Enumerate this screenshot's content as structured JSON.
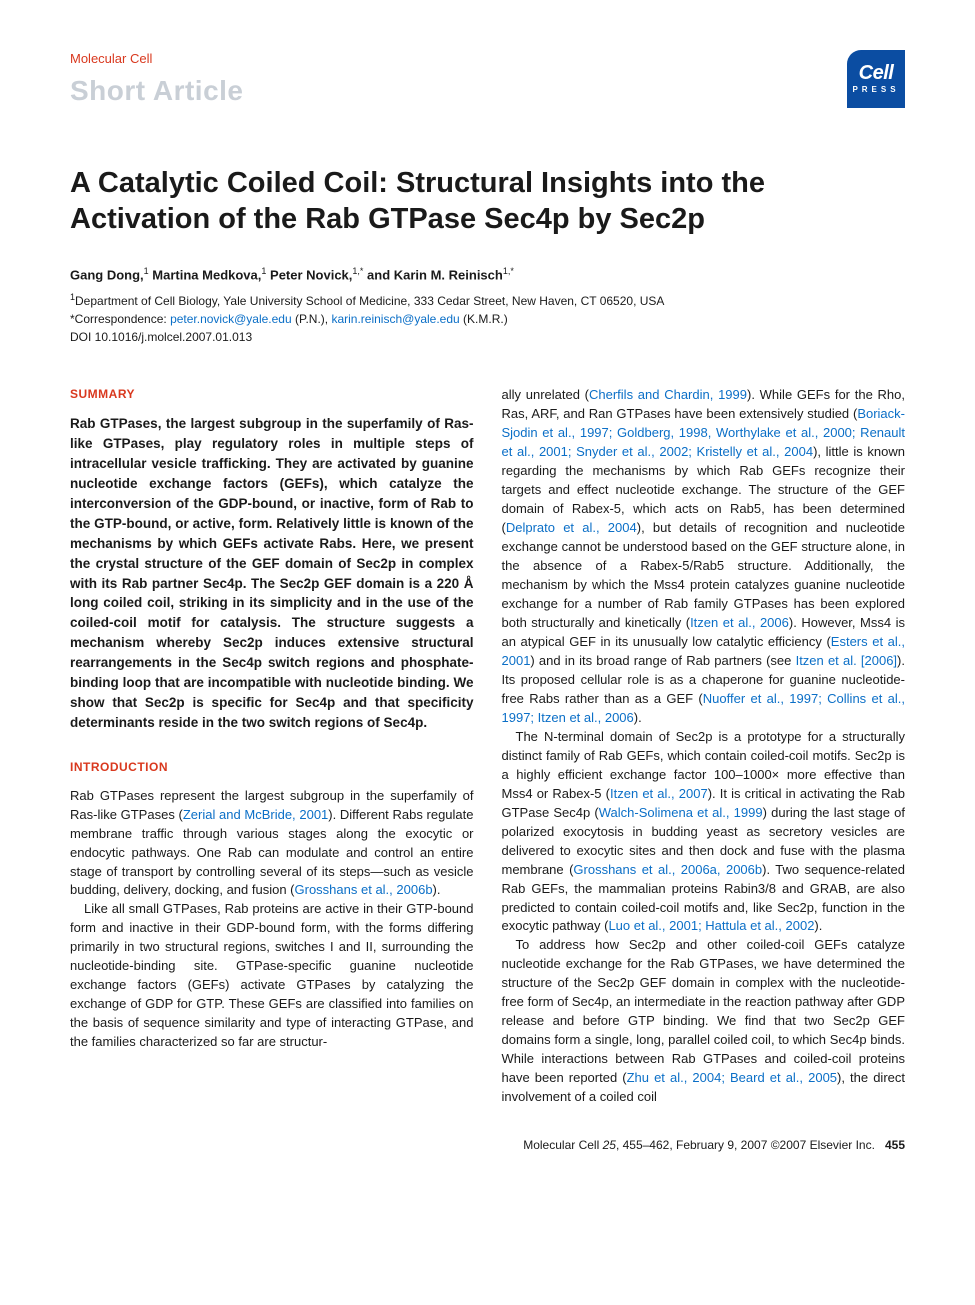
{
  "colors": {
    "accent_red": "#d9381e",
    "faded_gray": "#c9cfd6",
    "link_blue": "#0b6fc7",
    "logo_blue": "#0b4da2",
    "text": "#1a1a1a",
    "background": "#ffffff"
  },
  "typography": {
    "body_pt": 13,
    "title_pt": 29,
    "article_type_pt": 28,
    "section_head_pt": 12,
    "footer_pt": 12
  },
  "header": {
    "journal": "Molecular Cell",
    "article_type": "Short Article",
    "logo_top": "Cell",
    "logo_bottom": "PRESS"
  },
  "title": "A Catalytic Coiled Coil: Structural Insights into the Activation of the Rab GTPase Sec4p by Sec2p",
  "authors_html": "Gang Dong,<sup>1</sup> Martina Medkova,<sup>1</sup> Peter Novick,<sup>1,*</sup> and Karin M. Reinisch<sup>1,*</sup>",
  "affiliation_html": "<sup>1</sup>Department of Cell Biology, Yale University School of Medicine, 333 Cedar Street, New Haven, CT 06520, USA",
  "correspondence_prefix": "*Correspondence: ",
  "correspondence_email1": "peter.novick@yale.edu",
  "correspondence_mid1": " (P.N.), ",
  "correspondence_email2": "karin.reinisch@yale.edu",
  "correspondence_mid2": " (K.M.R.)",
  "doi": "DOI 10.1016/j.molcel.2007.01.013",
  "sections": {
    "summary_head": "SUMMARY",
    "summary_body": "Rab GTPases, the largest subgroup in the superfamily of Ras-like GTPases, play regulatory roles in multiple steps of intracellular vesicle trafficking. They are activated by guanine nucleotide exchange factors (GEFs), which catalyze the interconversion of the GDP-bound, or inactive, form of Rab to the GTP-bound, or active, form. Relatively little is known of the mechanisms by which GEFs activate Rabs. Here, we present the crystal structure of the GEF domain of Sec2p in complex with its Rab partner Sec4p. The Sec2p GEF domain is a 220 Å long coiled coil, striking in its simplicity and in the use of the coiled-coil motif for catalysis. The structure suggests a mechanism whereby Sec2p induces extensive structural rearrangements in the Sec4p switch regions and phosphate-binding loop that are incompatible with nucleotide binding. We show that Sec2p is specific for Sec4p and that specificity determinants reside in the two switch regions of Sec4p.",
    "intro_head": "INTRODUCTION",
    "intro_p1_a": "Rab GTPases represent the largest subgroup in the superfamily of Ras-like GTPases (",
    "intro_p1_link1": "Zerial and McBride, 2001",
    "intro_p1_b": "). Different Rabs regulate membrane traffic through various stages along the exocytic or endocytic pathways. One Rab can modulate and control an entire stage of transport by controlling several of its steps—such as vesicle budding, delivery, docking, and fusion (",
    "intro_p1_link2": "Grosshans et al., 2006b",
    "intro_p1_c": ").",
    "intro_p2": "Like all small GTPases, Rab proteins are active in their GTP-bound form and inactive in their GDP-bound form, with the forms differing primarily in two structural regions, switches I and II, surrounding the nucleotide-binding site. GTPase-specific guanine nucleotide exchange factors (GEFs) activate GTPases by catalyzing the exchange of GDP for GTP. These GEFs are classified into families on the basis of sequence similarity and type of interacting GTPase, and the families characterized so far are structur-",
    "col2_p1_a": "ally unrelated (",
    "col2_p1_link1": "Cherfils and Chardin, 1999",
    "col2_p1_b": "). While GEFs for the Rho, Ras, ARF, and Ran GTPases have been extensively studied (",
    "col2_p1_link2": "Boriack-Sjodin et al., 1997; Goldberg, 1998, Worthylake et al., 2000; Renault et al., 2001; Snyder et al., 2002; Kristelly et al., 2004",
    "col2_p1_c": "), little is known regarding the mechanisms by which Rab GEFs recognize their targets and effect nucleotide exchange. The structure of the GEF domain of Rabex-5, which acts on Rab5, has been determined (",
    "col2_p1_link3": "Delprato et al., 2004",
    "col2_p1_d": "), but details of recognition and nucleotide exchange cannot be understood based on the GEF structure alone, in the absence of a Rabex-5/Rab5 structure. Additionally, the mechanism by which the Mss4 protein catalyzes guanine nucleotide exchange for a number of Rab family GTPases has been explored both structurally and kinetically (",
    "col2_p1_link4": "Itzen et al., 2006",
    "col2_p1_e": "). However, Mss4 is an atypical GEF in its unusually low catalytic efficiency (",
    "col2_p1_link5": "Esters et al., 2001",
    "col2_p1_f": ") and in its broad range of Rab partners (see ",
    "col2_p1_link6": "Itzen et al. [2006]",
    "col2_p1_g": "). Its proposed cellular role is as a chaperone for guanine nucleotide-free Rabs rather than as a GEF (",
    "col2_p1_link7": "Nuoffer et al., 1997; Collins et al., 1997; Itzen et al., 2006",
    "col2_p1_h": ").",
    "col2_p2_a": "The N-terminal domain of Sec2p is a prototype for a structurally distinct family of Rab GEFs, which contain coiled-coil motifs. Sec2p is a highly efficient exchange factor 100–1000× more effective than Mss4 or Rabex-5 (",
    "col2_p2_link1": "Itzen et al., 2007",
    "col2_p2_b": "). It is critical in activating the Rab GTPase Sec4p (",
    "col2_p2_link2": "Walch-Solimena et al., 1999",
    "col2_p2_c": ") during the last stage of polarized exocytosis in budding yeast as secretory vesicles are delivered to exocytic sites and then dock and fuse with the plasma membrane (",
    "col2_p2_link3": "Grosshans et al., 2006a, 2006b",
    "col2_p2_d": "). Two sequence-related Rab GEFs, the mammalian proteins Rabin3/8 and GRAB, are also predicted to contain coiled-coil motifs and, like Sec2p, function in the exocytic pathway (",
    "col2_p2_link4": "Luo et al., 2001; Hattula et al., 2002",
    "col2_p2_e": ").",
    "col2_p3_a": "To address how Sec2p and other coiled-coil GEFs catalyze nucleotide exchange for the Rab GTPases, we have determined the structure of the Sec2p GEF domain in complex with the nucleotide-free form of Sec4p, an intermediate in the reaction pathway after GDP release and before GTP binding. We find that two Sec2p GEF domains form a single, long, parallel coiled coil, to which Sec4p binds. While interactions between Rab GTPases and coiled-coil proteins have been reported (",
    "col2_p3_link1": "Zhu et al., 2004; Beard et al., 2005",
    "col2_p3_b": "), the direct involvement of a coiled coil"
  },
  "footer": {
    "citation_a": "Molecular Cell ",
    "citation_b": "25",
    "citation_c": ", 455–462, February 9, 2007 ©2007 Elsevier Inc.",
    "page_no": "455"
  }
}
